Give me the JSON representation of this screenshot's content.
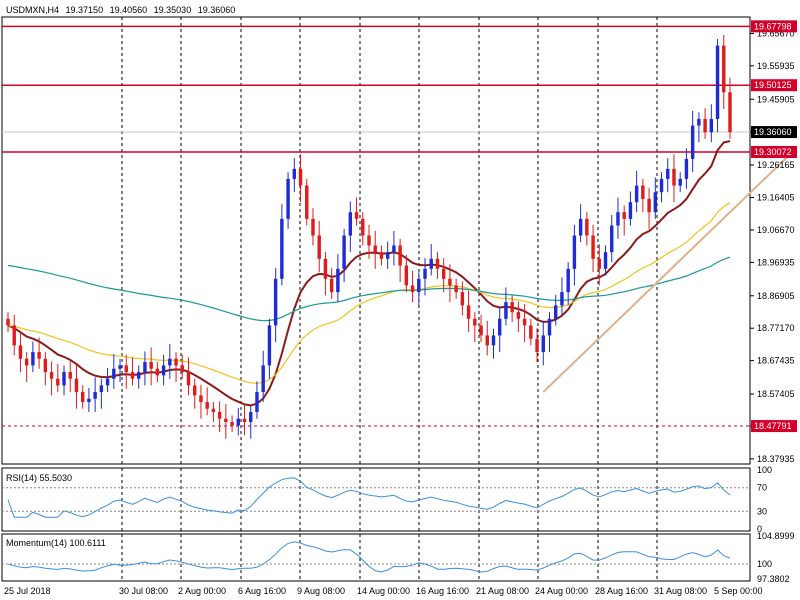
{
  "header": {
    "symbol": "USDMXN,H4",
    "open": "19.37150",
    "high": "19.40560",
    "low": "19.35030",
    "close": "19.36060"
  },
  "colors": {
    "bull": "#1f2bd4",
    "bear": "#e01b1b",
    "grid": "#000000",
    "level": "#d4002a",
    "ma_fast": "#8b1a1a",
    "ma_mid": "#f0c419",
    "ma_slow": "#1a9a96",
    "trend": "#e0b08a",
    "osc": "#3d8fe0"
  },
  "chart_data": [
    {
      "type": "candlestick",
      "title": "USDMXN,H4",
      "ylim": [
        18.37,
        19.7
      ],
      "y_ticks": [
        "19.65670",
        "19.55935",
        "19.45905",
        "19.36060",
        "19.26165",
        "19.16405",
        "19.06670",
        "18.96935",
        "18.86905",
        "18.77170",
        "18.67435",
        "18.57405",
        "18.47791",
        "18.37935"
      ],
      "x_ticks": [
        "25 Jul 2018",
        "30 Jul 08:00",
        "2 Aug 00:00",
        "6 Aug 16:00",
        "9 Aug 08:00",
        "14 Aug 00:00",
        "16 Aug 16:00",
        "21 Aug 08:00",
        "24 Aug 00:00",
        "28 Aug 16:00",
        "31 Aug 08:00",
        "5 Sep 00:00"
      ],
      "levels": [
        {
          "value": 19.67798,
          "label": "19.67798",
          "style": "solid"
        },
        {
          "value": 19.50125,
          "label": "19.50125",
          "style": "solid"
        },
        {
          "value": 19.30072,
          "label": "19.30072",
          "style": "solid"
        },
        {
          "value": 18.47791,
          "label": "18.47791",
          "style": "dashed"
        }
      ],
      "current_price": {
        "value": 19.3606,
        "label": "19.36060"
      },
      "trendline": {
        "from": [
          86,
          18.58
        ],
        "to": [
          126,
          19.3
        ]
      },
      "closes": [
        18.78,
        18.72,
        18.68,
        18.66,
        18.7,
        18.68,
        18.64,
        18.62,
        18.6,
        18.64,
        18.62,
        18.58,
        18.55,
        18.56,
        18.58,
        18.6,
        18.62,
        18.65,
        18.66,
        18.64,
        18.62,
        18.64,
        18.67,
        18.65,
        18.63,
        18.66,
        18.68,
        18.66,
        18.64,
        18.6,
        18.57,
        18.55,
        18.53,
        18.52,
        18.5,
        18.49,
        18.48,
        18.5,
        18.49,
        18.52,
        18.58,
        18.66,
        18.78,
        18.92,
        19.1,
        19.22,
        19.25,
        19.2,
        19.1,
        19.05,
        18.98,
        18.92,
        18.88,
        18.95,
        19.05,
        19.12,
        19.1,
        19.05,
        19.02,
        19.0,
        18.98,
        19.0,
        19.02,
        18.96,
        18.9,
        18.88,
        18.92,
        18.95,
        18.98,
        18.95,
        18.92,
        18.9,
        18.88,
        18.84,
        18.8,
        18.78,
        18.75,
        18.72,
        18.75,
        18.8,
        18.85,
        18.82,
        18.8,
        18.78,
        18.74,
        18.7,
        18.75,
        18.8,
        18.84,
        18.88,
        18.95,
        19.05,
        19.1,
        19.05,
        18.98,
        18.95,
        19.0,
        19.08,
        19.12,
        19.1,
        19.15,
        19.2,
        19.16,
        19.12,
        19.18,
        19.22,
        19.25,
        19.2,
        19.22,
        19.28,
        19.38,
        19.4,
        19.36,
        19.4,
        19.62,
        19.48,
        19.36
      ],
      "series": [
        {
          "name": "",
          "period": 14,
          "color_key": "ma_fast"
        },
        {
          "name": "",
          "period": 40,
          "color_key": "ma_mid"
        },
        {
          "name": "",
          "period": 100,
          "color_key": "ma_slow"
        }
      ]
    },
    {
      "type": "line",
      "title": "RSI(14) 55.5030",
      "ylim": [
        0,
        100
      ],
      "y_ticks": [
        "100",
        "70",
        "30",
        "0"
      ],
      "levels": [
        70,
        30
      ]
    },
    {
      "type": "line",
      "title": "Momentum(14) 100.6111",
      "ylim": [
        97.3802,
        104.8999
      ],
      "y_ticks": [
        "104.8999",
        "100",
        "97.3802"
      ],
      "levels": [
        100
      ]
    }
  ]
}
